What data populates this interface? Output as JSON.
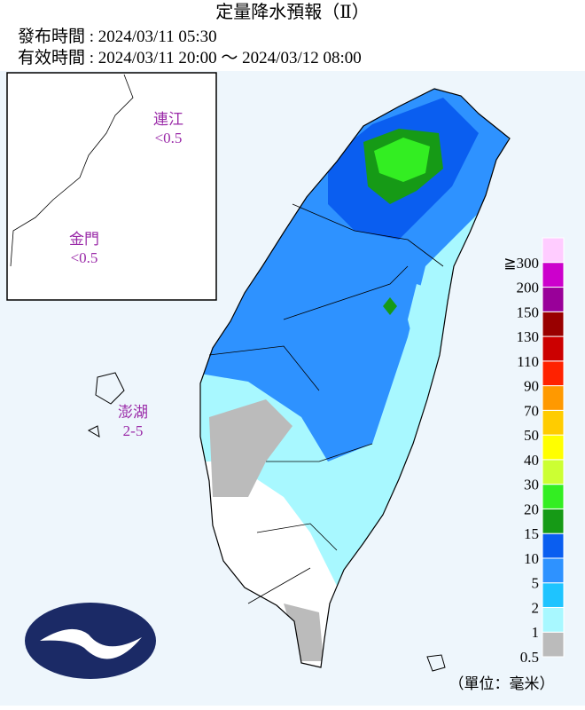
{
  "header": {
    "title": "定量降水預報（Ⅱ）",
    "issued": "發布時間 : 2024/03/11 05:30",
    "valid": "有效時間 : 2024/03/11 20:00 ～ 2024/03/12 08:00"
  },
  "islands": [
    {
      "name": "連江",
      "value": "<0.5"
    },
    {
      "name": "金門",
      "value": "<0.5"
    },
    {
      "name": "澎湖",
      "value": "2-5"
    }
  ],
  "legend": {
    "items": [
      {
        "label": "0.5",
        "color": "#bbbbbb"
      },
      {
        "label": "1",
        "color": "#a8f8ff"
      },
      {
        "label": "2",
        "color": "#1ec4ff"
      },
      {
        "label": "5",
        "color": "#2e92ff"
      },
      {
        "label": "10",
        "color": "#0a5ef0"
      },
      {
        "label": "15",
        "color": "#169a16"
      },
      {
        "label": "20",
        "color": "#33ee22"
      },
      {
        "label": "30",
        "color": "#ccff33"
      },
      {
        "label": "40",
        "color": "#ffff00"
      },
      {
        "label": "50",
        "color": "#ffcc00"
      },
      {
        "label": "70",
        "color": "#ff9900"
      },
      {
        "label": "90",
        "color": "#ff2200"
      },
      {
        "label": "110",
        "color": "#cc0000"
      },
      {
        "label": "130",
        "color": "#990000"
      },
      {
        "label": "150",
        "color": "#990099"
      },
      {
        "label": "200",
        "color": "#cc00cc"
      },
      {
        "label": "≧300",
        "color": "#ff00ff"
      }
    ],
    "top_color": "#ffccff",
    "unit": "（單位：毫米）"
  }
}
